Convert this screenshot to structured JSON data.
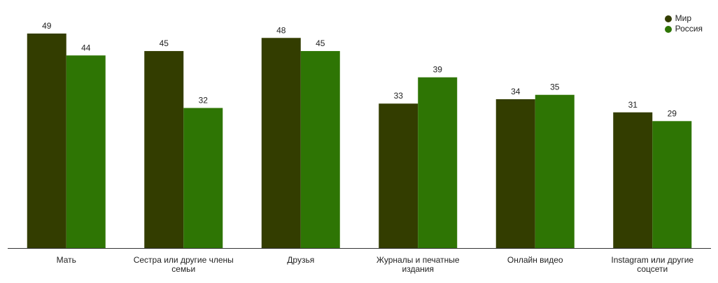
{
  "chart_data": {
    "type": "bar",
    "categories": [
      "Мать",
      "Сестра или другие члены семьи",
      "Друзья",
      "Журналы и печатные издания",
      "Онлайн видео",
      "Instagram или другие соцсети"
    ],
    "category_lines": [
      [
        "Мать"
      ],
      [
        "Сестра или другие члены",
        "семьи"
      ],
      [
        "Друзья"
      ],
      [
        "Журналы и печатные",
        "издания"
      ],
      [
        "Онлайн видео"
      ],
      [
        "Instagram или другие",
        "соцсети"
      ]
    ],
    "series": [
      {
        "name": "Мир",
        "color": "#333d00",
        "values": [
          49,
          45,
          48,
          33,
          34,
          31
        ]
      },
      {
        "name": "Россия",
        "color": "#2e7504",
        "values": [
          44,
          32,
          45,
          39,
          35,
          29
        ]
      }
    ],
    "ylim": [
      0,
      49
    ],
    "grid": false,
    "legend_position": "top-right",
    "axis_color": "#333333"
  }
}
